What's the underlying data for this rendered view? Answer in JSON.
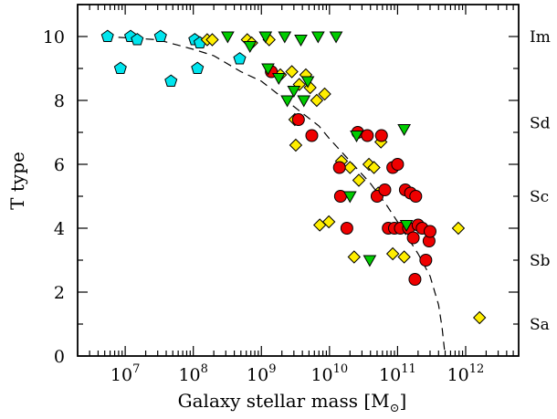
{
  "chart_data": {
    "type": "scatter",
    "xlabel": "Galaxy stellar mass [M",
    "xlabel_subscript": "⊙",
    "xlabel_close": "]",
    "ylabel": "T type",
    "x_scale": "log",
    "xlim": [
      2000000,
      6000000000000
    ],
    "ylim": [
      0,
      11
    ],
    "x_ticks": [
      {
        "value": 10000000,
        "base": "10",
        "exp": "7"
      },
      {
        "value": 100000000,
        "base": "10",
        "exp": "8"
      },
      {
        "value": 1000000000,
        "base": "10",
        "exp": "9"
      },
      {
        "value": 10000000000,
        "base": "10",
        "exp": "10"
      },
      {
        "value": 100000000000,
        "base": "10",
        "exp": "11"
      },
      {
        "value": 1000000000000,
        "base": "10",
        "exp": "12"
      }
    ],
    "y_ticks": [
      0,
      2,
      4,
      6,
      8,
      10
    ],
    "right_labels": [
      {
        "y": 10,
        "text": "Im"
      },
      {
        "y": 7.3,
        "text": "Sd"
      },
      {
        "y": 5.0,
        "text": "Sc"
      },
      {
        "y": 3.0,
        "text": "Sb"
      },
      {
        "y": 1.0,
        "text": "Sa"
      }
    ],
    "grid": false,
    "series": [
      {
        "marker": "pentagon",
        "color": "#00e5ee",
        "points": [
          [
            5500000.0,
            10.0
          ],
          [
            8500000.0,
            9.0
          ],
          [
            12000000.0,
            10.0
          ],
          [
            15000000.0,
            9.9
          ],
          [
            33000000.0,
            10.0
          ],
          [
            47000000.0,
            8.6
          ],
          [
            105000000.0,
            9.9
          ],
          [
            115000000.0,
            9.0
          ],
          [
            125000000.0,
            9.8
          ],
          [
            480000000.0,
            9.3
          ]
        ]
      },
      {
        "marker": "diamond",
        "color": "#ffee00",
        "points": [
          [
            160000000.0,
            9.9
          ],
          [
            190000000.0,
            9.9
          ],
          [
            620000000.0,
            9.9
          ],
          [
            720000000.0,
            9.8
          ],
          [
            1300000000.0,
            9.9
          ],
          [
            1900000000.0,
            8.8
          ],
          [
            2800000000.0,
            8.9
          ],
          [
            3100000000.0,
            7.4
          ],
          [
            3200000000.0,
            6.6
          ],
          [
            3600000000.0,
            8.5
          ],
          [
            4500000000.0,
            8.8
          ],
          [
            5200000000.0,
            8.4
          ],
          [
            6500000000.0,
            8.0
          ],
          [
            7200000000.0,
            4.1
          ],
          [
            8500000000.0,
            8.2
          ],
          [
            9800000000.0,
            4.2
          ],
          [
            15000000000.0,
            6.1
          ],
          [
            20000000000.0,
            5.9
          ],
          [
            23000000000.0,
            3.1
          ],
          [
            27000000000.0,
            5.5
          ],
          [
            38000000000.0,
            6.0
          ],
          [
            45000000000.0,
            5.9
          ],
          [
            52000000000.0,
            5.1
          ],
          [
            57000000000.0,
            6.7
          ],
          [
            85000000000.0,
            3.2
          ],
          [
            125000000000.0,
            3.1
          ],
          [
            780000000000.0,
            4.0
          ],
          [
            1600000000000.0,
            1.2
          ]
        ]
      },
      {
        "marker": "circle",
        "color": "#ee0000",
        "points": [
          [
            1400000000.0,
            8.9
          ],
          [
            3500000000.0,
            7.4
          ],
          [
            5500000000.0,
            6.9
          ],
          [
            14000000000.0,
            5.9
          ],
          [
            14500000000.0,
            5.0
          ],
          [
            18000000000.0,
            4.0
          ],
          [
            26000000000.0,
            7.0
          ],
          [
            36000000000.0,
            6.9
          ],
          [
            50000000000.0,
            5.0
          ],
          [
            58000000000.0,
            6.9
          ],
          [
            65000000000.0,
            5.2
          ],
          [
            73000000000.0,
            4.0
          ],
          [
            85000000000.0,
            5.9
          ],
          [
            90000000000.0,
            4.0
          ],
          [
            100000000000.0,
            6.0
          ],
          [
            110000000000.0,
            4.0
          ],
          [
            130000000000.0,
            5.2
          ],
          [
            145000000000.0,
            4.0
          ],
          [
            155000000000.0,
            5.1
          ],
          [
            170000000000.0,
            3.7
          ],
          [
            180000000000.0,
            2.4
          ],
          [
            185000000000.0,
            5.0
          ],
          [
            200000000000.0,
            4.1
          ],
          [
            230000000000.0,
            4.0
          ],
          [
            260000000000.0,
            3.0
          ],
          [
            290000000000.0,
            3.6
          ],
          [
            300000000000.0,
            3.9
          ]
        ]
      },
      {
        "marker": "triangle-down",
        "color": "#00cc00",
        "points": [
          [
            320000000.0,
            10.0
          ],
          [
            680000000.0,
            9.7
          ],
          [
            1150000000.0,
            10.0
          ],
          [
            1250000000.0,
            9.0
          ],
          [
            1800000000.0,
            8.7
          ],
          [
            2200000000.0,
            10.0
          ],
          [
            2400000000.0,
            8.0
          ],
          [
            3000000000.0,
            8.3
          ],
          [
            3800000000.0,
            9.9
          ],
          [
            4200000000.0,
            8.0
          ],
          [
            4800000000.0,
            8.6
          ],
          [
            6800000000.0,
            10.0
          ],
          [
            12500000000.0,
            10.0
          ],
          [
            20000000000.0,
            5.0
          ],
          [
            25000000000.0,
            6.9
          ],
          [
            39000000000.0,
            3.0
          ],
          [
            125000000000.0,
            7.1
          ],
          [
            135000000000.0,
            4.1
          ]
        ]
      }
    ],
    "curve": [
      [
        5000000.0,
        10.0
      ],
      [
        30000000.0,
        9.9
      ],
      [
        100000000.0,
        9.6
      ],
      [
        200000000.0,
        9.4
      ],
      [
        500000000.0,
        8.9
      ],
      [
        1000000000.0,
        8.6
      ],
      [
        2000000000.0,
        8.1
      ],
      [
        4000000000.0,
        7.6
      ],
      [
        7000000000.0,
        7.2
      ],
      [
        10000000000.0,
        6.8
      ],
      [
        20000000000.0,
        6.1
      ],
      [
        40000000000.0,
        5.4
      ],
      [
        70000000000.0,
        4.7
      ],
      [
        100000000000.0,
        4.2
      ],
      [
        200000000000.0,
        3.2
      ],
      [
        300000000000.0,
        2.5
      ],
      [
        400000000000.0,
        1.6
      ],
      [
        450000000000.0,
        0.9
      ],
      [
        500000000000.0,
        0.0
      ]
    ]
  }
}
